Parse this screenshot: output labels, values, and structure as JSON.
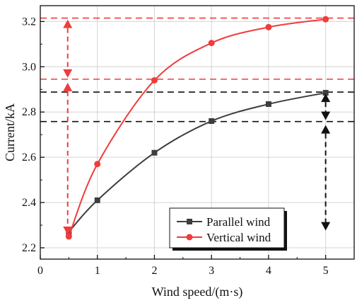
{
  "chart_data": {
    "type": "line",
    "xlabel": "Wind speed/(m·s)",
    "ylabel": "Current/kA",
    "xlim": [
      0,
      5.5
    ],
    "ylim": [
      2.15,
      3.27
    ],
    "xticks": [
      0,
      1,
      2,
      3,
      4,
      5
    ],
    "yticks": [
      2.2,
      2.4,
      2.6,
      2.8,
      3.0,
      3.2
    ],
    "xtick_labels": [
      "0",
      "1",
      "2",
      "3",
      "4",
      "5"
    ],
    "ytick_labels": [
      "2.2",
      "2.4",
      "2.6",
      "2.8",
      "3.0",
      "3.2"
    ],
    "grid": true,
    "legend_position": "bottom-right",
    "series": [
      {
        "name": "Parallel wind",
        "color": "#3d3d3d",
        "marker": "square",
        "x": [
          0.5,
          1,
          2,
          3,
          4,
          5
        ],
        "y": [
          2.27,
          2.41,
          2.62,
          2.76,
          2.835,
          2.885
        ]
      },
      {
        "name": "Vertical wind",
        "color": "#f03c3c",
        "marker": "circle",
        "x": [
          0.5,
          1,
          2,
          3,
          4,
          5
        ],
        "y": [
          2.25,
          2.57,
          2.94,
          3.105,
          3.175,
          3.21
        ]
      }
    ],
    "reference_lines": [
      {
        "y": 3.215,
        "color": "#f03c3c"
      },
      {
        "y": 2.945,
        "color": "#f03c3c"
      },
      {
        "y": 2.888,
        "color": "#111111"
      },
      {
        "y": 2.758,
        "color": "#111111"
      }
    ],
    "range_arrows": [
      {
        "x": 0.48,
        "y_top": 3.215,
        "y_mid": 2.945,
        "y_bottom": 2.25,
        "color": "#f03c3c"
      },
      {
        "x": 5.0,
        "y_top": 2.888,
        "y_mid": 2.758,
        "y_bottom": 2.27,
        "color": "#111111"
      }
    ]
  }
}
